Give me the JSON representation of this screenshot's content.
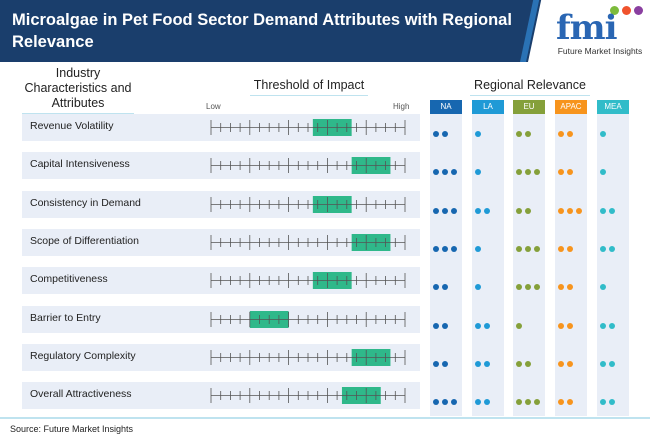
{
  "header": {
    "title": "Microalgae in Pet Food Sector Demand Attributes with Regional Relevance"
  },
  "logo": {
    "letters": "fmi",
    "subtitle": "Future Market Insights",
    "colors": [
      "#7dbb3c",
      "#f0532d",
      "#8a3fa0"
    ]
  },
  "colors": {
    "header_bg": "#1a3e6c",
    "highlight": "#2fb88a",
    "band": "#e9eef7"
  },
  "sections": {
    "attributes": "Industry Characteristics and Attributes",
    "threshold": "Threshold of Impact",
    "regional": "Regional Relevance"
  },
  "chart_data": {
    "type": "table",
    "scale": {
      "low_label": "Low",
      "high_label": "High",
      "min": 0,
      "max": 20
    },
    "regions": [
      {
        "name": "NA",
        "color": "#1767b0"
      },
      {
        "name": "LA",
        "color": "#1f9ad6"
      },
      {
        "name": "EU",
        "color": "#85a03a"
      },
      {
        "name": "APAC",
        "color": "#f7941d"
      },
      {
        "name": "MEA",
        "color": "#31bcc9"
      }
    ],
    "rows": [
      {
        "attribute": "Revenue Volatility",
        "impact_range": [
          10.5,
          14.5
        ],
        "regional": [
          2,
          1,
          2,
          2,
          1
        ]
      },
      {
        "attribute": "Capital Intensiveness",
        "impact_range": [
          14.5,
          18.5
        ],
        "regional": [
          3,
          1,
          3,
          2,
          1
        ]
      },
      {
        "attribute": "Consistency in Demand",
        "impact_range": [
          10.5,
          14.5
        ],
        "regional": [
          3,
          2,
          2,
          3,
          2
        ]
      },
      {
        "attribute": "Scope of Differentiation",
        "impact_range": [
          14.5,
          18.5
        ],
        "regional": [
          3,
          1,
          3,
          2,
          2
        ]
      },
      {
        "attribute": "Competitiveness",
        "impact_range": [
          10.5,
          14.5
        ],
        "regional": [
          2,
          1,
          3,
          2,
          1
        ]
      },
      {
        "attribute": "Barrier to Entry",
        "impact_range": [
          4,
          8
        ],
        "regional": [
          2,
          2,
          1,
          2,
          2
        ]
      },
      {
        "attribute": "Regulatory Complexity",
        "impact_range": [
          14.5,
          18.5
        ],
        "regional": [
          2,
          2,
          2,
          2,
          2
        ]
      },
      {
        "attribute": "Overall Attractiveness",
        "impact_range": [
          13.5,
          17.5
        ],
        "regional": [
          3,
          2,
          3,
          2,
          2
        ]
      }
    ]
  },
  "footer": {
    "source": "Source: Future Market Insights"
  }
}
